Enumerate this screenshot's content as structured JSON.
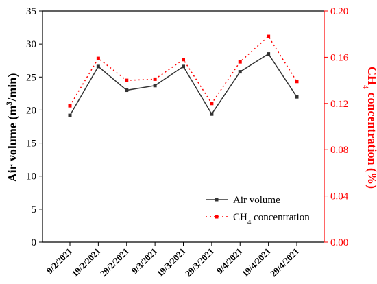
{
  "chart_data": {
    "type": "line",
    "categories": [
      "9/2/2021",
      "19/2/2021",
      "29/2/2021",
      "9/3/2021",
      "19/3/2021",
      "29/3/2021",
      "9/4/2021",
      "19/4/2021",
      "29/4/2021"
    ],
    "left_axis": {
      "label_main": "Air volume (m",
      "label_sup": "3",
      "label_tail": "/min)",
      "ylim": [
        0,
        35
      ],
      "ticks": [
        "0",
        "5",
        "10",
        "15",
        "20",
        "25",
        "30",
        "35"
      ],
      "color": "#000000"
    },
    "right_axis": {
      "label_main": "CH",
      "label_sub": "4",
      "label_tail": " concentration (%)",
      "ylim": [
        0,
        0.2
      ],
      "ticks": [
        "0.00",
        "0.04",
        "0.08",
        "0.12",
        "0.16",
        "0.20"
      ],
      "color": "#ff0000"
    },
    "series": [
      {
        "name": "Air volume",
        "axis": "left",
        "color": "#333333",
        "style": "solid",
        "values": [
          19.2,
          26.6,
          23.0,
          23.7,
          26.6,
          19.4,
          25.8,
          28.5,
          22.0
        ]
      },
      {
        "name_main": "CH",
        "name_sub": "4",
        "name_tail": " concentration",
        "axis": "right",
        "color": "#ff0000",
        "style": "dotted",
        "values": [
          0.118,
          0.159,
          0.14,
          0.141,
          0.158,
          0.12,
          0.156,
          0.178,
          0.139
        ]
      }
    ],
    "legend_position": "bottom-right",
    "grid": false
  }
}
